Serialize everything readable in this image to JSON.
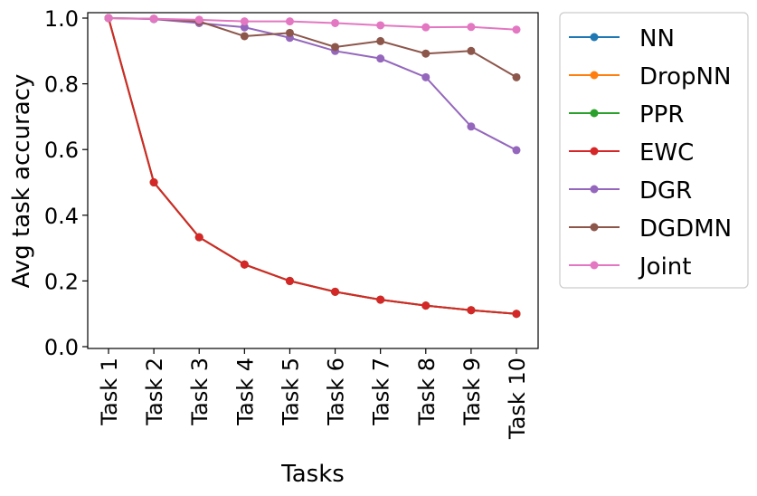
{
  "chart_data": {
    "type": "line",
    "xlabel": "Tasks",
    "ylabel": "Avg task accuracy",
    "categories": [
      "Task 1",
      "Task 2",
      "Task 3",
      "Task 4",
      "Task 5",
      "Task 6",
      "Task 7",
      "Task 8",
      "Task 9",
      "Task 10"
    ],
    "ylim": [
      0.0,
      1.0
    ],
    "yticks": [
      0.0,
      0.2,
      0.4,
      0.6,
      0.8,
      1.0
    ],
    "ytick_labels": [
      "0.0",
      "0.2",
      "0.4",
      "0.6",
      "0.8",
      "1.0"
    ],
    "grid": false,
    "legend_position": "outside-right",
    "series": [
      {
        "name": "NN",
        "color": "#1f77b4",
        "values": [
          1.0,
          0.5,
          0.333,
          0.25,
          0.2,
          0.167,
          0.143,
          0.125,
          0.111,
          0.1
        ]
      },
      {
        "name": "DropNN",
        "color": "#ff7f0e",
        "values": [
          1.0,
          0.5,
          0.333,
          0.25,
          0.2,
          0.167,
          0.143,
          0.125,
          0.111,
          0.1
        ]
      },
      {
        "name": "PPR",
        "color": "#2ca02c",
        "values": [
          1.0,
          0.5,
          0.333,
          0.25,
          0.2,
          0.167,
          0.143,
          0.125,
          0.111,
          0.1
        ]
      },
      {
        "name": "EWC",
        "color": "#d62728",
        "values": [
          1.0,
          0.5,
          0.333,
          0.25,
          0.2,
          0.167,
          0.143,
          0.125,
          0.111,
          0.1
        ]
      },
      {
        "name": "DGR",
        "color": "#9467bd",
        "values": [
          1.0,
          0.997,
          0.985,
          0.972,
          0.94,
          0.9,
          0.877,
          0.82,
          0.67,
          0.598
        ]
      },
      {
        "name": "DGDMN",
        "color": "#8c564b",
        "values": [
          1.0,
          0.998,
          0.99,
          0.945,
          0.955,
          0.912,
          0.93,
          0.892,
          0.9,
          0.82
        ]
      },
      {
        "name": "Joint",
        "color": "#e377c2",
        "values": [
          1.0,
          0.998,
          0.995,
          0.99,
          0.99,
          0.985,
          0.978,
          0.972,
          0.973,
          0.965
        ]
      }
    ]
  }
}
